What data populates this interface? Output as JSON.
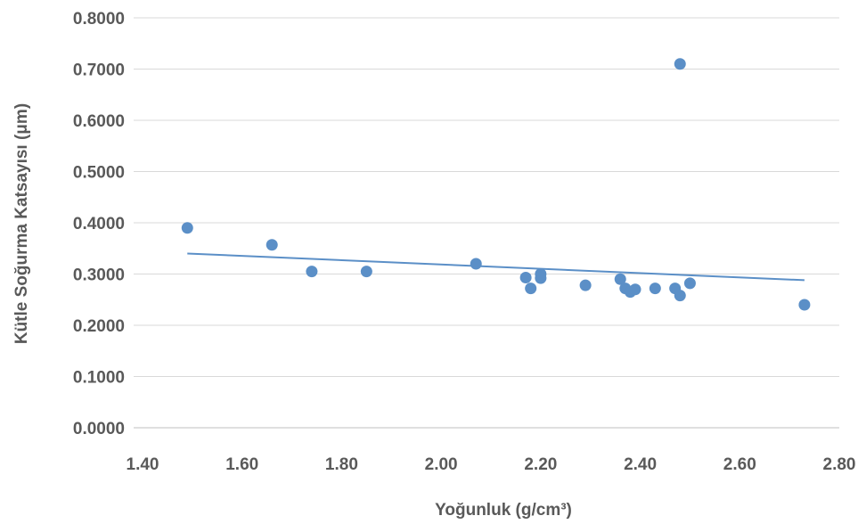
{
  "chart_data": {
    "type": "scatter",
    "xlabel": "Yoğunluk (g/cm³)",
    "ylabel": "Kütle Soğurma Katsayısı (μm)",
    "xlim": [
      1.4,
      2.8
    ],
    "ylim": [
      0.0,
      0.8
    ],
    "x_ticks": [
      "1.40",
      "1.60",
      "1.80",
      "2.00",
      "2.20",
      "2.40",
      "2.60",
      "2.80"
    ],
    "y_ticks": [
      "0.0000",
      "0.1000",
      "0.2000",
      "0.3000",
      "0.4000",
      "0.5000",
      "0.6000",
      "0.7000",
      "0.8000"
    ],
    "grid": true,
    "series": [
      {
        "color": "#5b8fc7",
        "points": [
          {
            "x": 1.49,
            "y": 0.39
          },
          {
            "x": 1.66,
            "y": 0.357
          },
          {
            "x": 1.74,
            "y": 0.305
          },
          {
            "x": 1.85,
            "y": 0.305
          },
          {
            "x": 2.07,
            "y": 0.32
          },
          {
            "x": 2.17,
            "y": 0.293
          },
          {
            "x": 2.18,
            "y": 0.272
          },
          {
            "x": 2.2,
            "y": 0.3
          },
          {
            "x": 2.2,
            "y": 0.292
          },
          {
            "x": 2.29,
            "y": 0.278
          },
          {
            "x": 2.36,
            "y": 0.29
          },
          {
            "x": 2.37,
            "y": 0.272
          },
          {
            "x": 2.38,
            "y": 0.265
          },
          {
            "x": 2.39,
            "y": 0.27
          },
          {
            "x": 2.43,
            "y": 0.272
          },
          {
            "x": 2.47,
            "y": 0.272
          },
          {
            "x": 2.48,
            "y": 0.258
          },
          {
            "x": 2.48,
            "y": 0.71
          },
          {
            "x": 2.5,
            "y": 0.282
          },
          {
            "x": 2.73,
            "y": 0.24
          }
        ]
      }
    ],
    "trendline": {
      "type": "linear",
      "color": "#5b8fc7",
      "start": {
        "x": 1.49,
        "y": 0.34
      },
      "end": {
        "x": 2.73,
        "y": 0.288
      }
    }
  }
}
